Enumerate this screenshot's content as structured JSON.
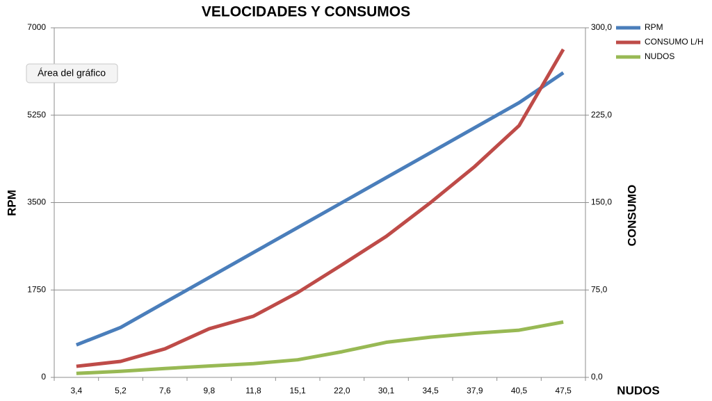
{
  "chart_data": {
    "type": "line",
    "title": "VELOCIDADES Y CONSUMOS",
    "categories": [
      "3,4",
      "5,2",
      "7,6",
      "9,8",
      "11,8",
      "15,1",
      "22,0",
      "30,1",
      "34,5",
      "37,9",
      "40,5",
      "47,5"
    ],
    "series": [
      {
        "name": "RPM",
        "color": "#4a7ebb",
        "values": [
          650,
          1000,
          1500,
          2000,
          2500,
          3000,
          3500,
          4000,
          4500,
          5000,
          5500,
          6100
        ]
      },
      {
        "name": "CONSUMO L/H",
        "color": "#be4b48",
        "axis": "y2",
        "values": [
          9.5,
          13.7,
          24.5,
          41.7,
          52.5,
          72.8,
          96.6,
          121,
          150,
          181,
          216,
          281.5
        ]
      },
      {
        "name": "NUDOS",
        "color": "#98b954",
        "axis": "y2",
        "values": [
          3.4,
          5.2,
          7.6,
          9.8,
          11.8,
          15.1,
          22.0,
          30.1,
          34.5,
          37.9,
          40.5,
          47.5
        ]
      }
    ],
    "ylim": [
      0,
      7000
    ],
    "yticks": [
      0,
      1750,
      3500,
      5250,
      7000
    ],
    "y2lim": [
      0,
      300
    ],
    "y2ticks": [
      {
        "value": 0,
        "label": "0,0"
      },
      {
        "value": 75,
        "label": "75,0"
      },
      {
        "value": 150,
        "label": "150,0"
      },
      {
        "value": 225,
        "label": "225,0"
      },
      {
        "value": 300,
        "label": "300,0"
      }
    ],
    "y_label": "RPM",
    "y2_label": "CONSUMO",
    "x_label": "NUDOS",
    "grid": true,
    "legend": "top-right",
    "tooltip": "Área del gráfico"
  }
}
